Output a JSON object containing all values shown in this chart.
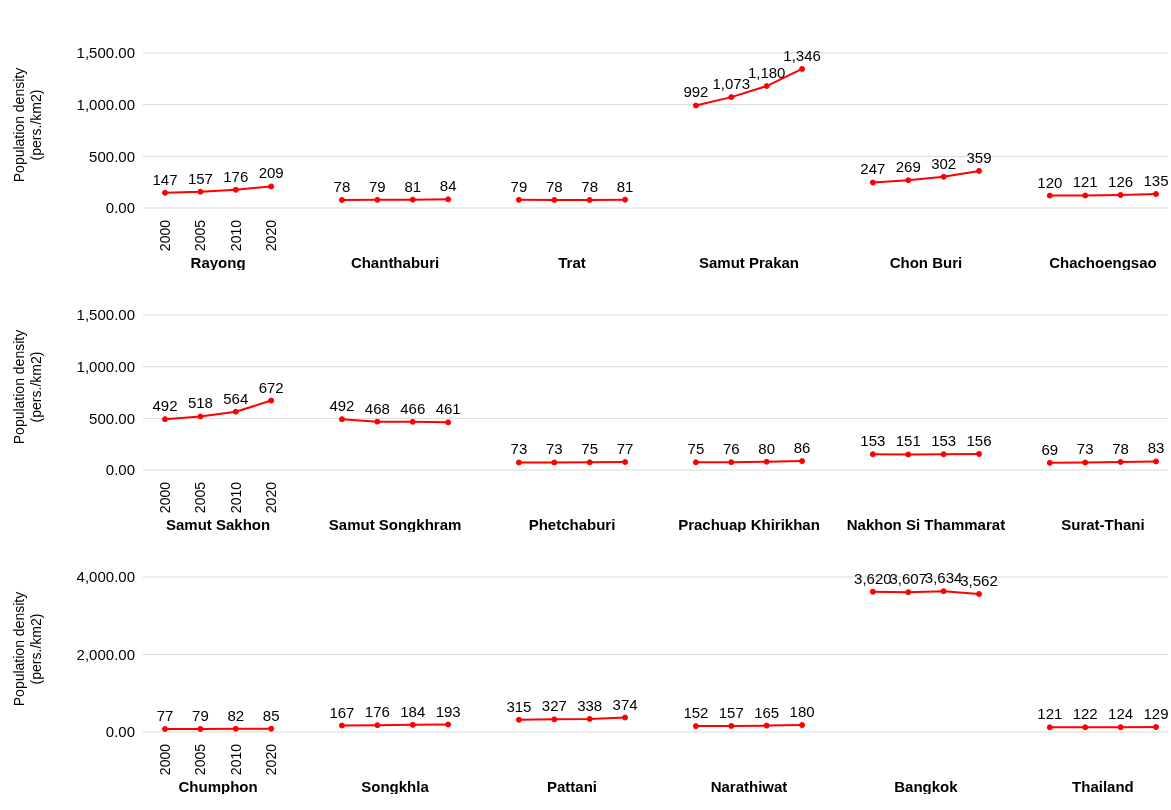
{
  "chart_data": [
    {
      "type": "line",
      "ylabel": "Population density (pers./km2)",
      "annotations": [
        "Rayong",
        "Chanthaburi",
        "Trat",
        "Samut Prakan",
        "Chon Buri",
        "Chachoengsao"
      ],
      "categories": [
        "2000",
        "2005",
        "2010",
        "2020",
        null,
        null,
        null,
        null,
        null,
        null,
        null,
        null,
        null,
        null,
        null,
        null,
        null,
        null,
        null,
        null,
        null,
        null,
        null,
        null,
        null,
        null,
        null,
        null,
        null
      ],
      "series": [
        {
          "color": "#ff0000",
          "values": [
            147,
            157,
            176,
            209,
            null,
            null,
            null,
            null,
            null,
            null,
            null,
            null,
            null,
            null,
            null,
            null,
            null,
            null,
            null,
            null,
            null,
            null,
            null,
            null,
            null,
            null,
            null,
            null,
            null
          ]
        },
        {
          "color": "#ff0000",
          "values": [
            null,
            null,
            null,
            null,
            null,
            78,
            79,
            81,
            84,
            null,
            null,
            null,
            null,
            null,
            null,
            null,
            null,
            null,
            null,
            null,
            null,
            null,
            null,
            null,
            null,
            null,
            null,
            null,
            null
          ]
        },
        {
          "color": "#ff0000",
          "values": [
            null,
            null,
            null,
            null,
            null,
            null,
            null,
            null,
            null,
            null,
            79,
            78,
            78,
            81,
            null,
            null,
            null,
            null,
            null,
            null,
            null,
            null,
            null,
            null,
            null,
            null,
            null,
            null,
            null
          ]
        },
        {
          "color": "#ff0000",
          "values": [
            null,
            null,
            null,
            null,
            null,
            null,
            null,
            null,
            null,
            null,
            null,
            null,
            null,
            null,
            null,
            992,
            1073,
            1180,
            1346,
            null,
            null,
            null,
            null,
            null,
            null,
            null,
            null,
            null,
            null
          ],
          "value_labels": [
            null,
            null,
            null,
            null,
            null,
            null,
            null,
            null,
            null,
            null,
            null,
            null,
            null,
            null,
            null,
            "992",
            "1,073",
            "1,180",
            "1,346",
            null,
            null,
            null,
            null,
            null,
            null,
            null,
            null,
            null,
            null
          ]
        },
        {
          "color": "#ff0000",
          "values": [
            null,
            null,
            null,
            null,
            null,
            null,
            null,
            null,
            null,
            null,
            null,
            null,
            null,
            null,
            null,
            null,
            null,
            null,
            null,
            null,
            247,
            269,
            302,
            359,
            null,
            null,
            null,
            null,
            null
          ]
        },
        {
          "color": "#ff0000",
          "values": [
            null,
            null,
            null,
            null,
            null,
            null,
            null,
            null,
            null,
            null,
            null,
            null,
            null,
            null,
            null,
            null,
            null,
            null,
            null,
            null,
            null,
            null,
            null,
            null,
            null,
            120,
            121,
            126,
            135
          ]
        }
      ],
      "ylim": [
        0,
        1500
      ],
      "yticks": [
        {
          "value": 0,
          "label": "0.00"
        },
        {
          "value": 500,
          "label": "500.00"
        },
        {
          "value": 1000,
          "label": "1,000.00"
        },
        {
          "value": 1500,
          "label": "1,500.00"
        }
      ],
      "grid": "y",
      "marker": "circle",
      "data_labels": true
    },
    {
      "type": "line",
      "ylabel": "Population density (pers./km2)",
      "annotations": [
        "Samut Sakhon",
        "Samut Songkhram",
        "Phetchaburi",
        "Prachuap Khirikhan",
        "Nakhon Si Thammarat",
        "Surat-Thani"
      ],
      "categories": [
        "2000",
        "2005",
        "2010",
        "2020",
        null,
        null,
        null,
        null,
        null,
        null,
        null,
        null,
        null,
        null,
        null,
        null,
        null,
        null,
        null,
        null,
        null,
        null,
        null,
        null,
        null,
        null,
        null,
        null,
        null
      ],
      "series": [
        {
          "color": "#ff0000",
          "values": [
            492,
            518,
            564,
            672,
            null,
            null,
            null,
            null,
            null,
            null,
            null,
            null,
            null,
            null,
            null,
            null,
            null,
            null,
            null,
            null,
            null,
            null,
            null,
            null,
            null,
            null,
            null,
            null,
            null
          ]
        },
        {
          "color": "#ff0000",
          "values": [
            null,
            null,
            null,
            null,
            null,
            492,
            468,
            466,
            461,
            null,
            null,
            null,
            null,
            null,
            null,
            null,
            null,
            null,
            null,
            null,
            null,
            null,
            null,
            null,
            null,
            null,
            null,
            null,
            null
          ]
        },
        {
          "color": "#ff0000",
          "values": [
            null,
            null,
            null,
            null,
            null,
            null,
            null,
            null,
            null,
            null,
            73,
            73,
            75,
            77,
            null,
            null,
            null,
            null,
            null,
            null,
            null,
            null,
            null,
            null,
            null,
            null,
            null,
            null,
            null
          ]
        },
        {
          "color": "#ff0000",
          "values": [
            null,
            null,
            null,
            null,
            null,
            null,
            null,
            null,
            null,
            null,
            null,
            null,
            null,
            null,
            null,
            75,
            76,
            80,
            86,
            null,
            null,
            null,
            null,
            null,
            null,
            null,
            null,
            null,
            null
          ]
        },
        {
          "color": "#ff0000",
          "values": [
            null,
            null,
            null,
            null,
            null,
            null,
            null,
            null,
            null,
            null,
            null,
            null,
            null,
            null,
            null,
            null,
            null,
            null,
            null,
            null,
            153,
            151,
            153,
            156,
            null,
            null,
            null,
            null,
            null
          ]
        },
        {
          "color": "#ff0000",
          "values": [
            null,
            null,
            null,
            null,
            null,
            null,
            null,
            null,
            null,
            null,
            null,
            null,
            null,
            null,
            null,
            null,
            null,
            null,
            null,
            null,
            null,
            null,
            null,
            null,
            null,
            69,
            73,
            78,
            83
          ]
        }
      ],
      "ylim": [
        0,
        1500
      ],
      "yticks": [
        {
          "value": 0,
          "label": "0.00"
        },
        {
          "value": 500,
          "label": "500.00"
        },
        {
          "value": 1000,
          "label": "1,000.00"
        },
        {
          "value": 1500,
          "label": "1,500.00"
        }
      ],
      "grid": "y",
      "marker": "circle",
      "data_labels": true
    },
    {
      "type": "line",
      "ylabel": "Population density (pers./km2)",
      "annotations": [
        "Chumphon",
        "Songkhla",
        "Pattani",
        "Narathiwat",
        "Bangkok",
        "Thailand"
      ],
      "categories": [
        "2000",
        "2005",
        "2010",
        "2020",
        null,
        null,
        null,
        null,
        null,
        null,
        null,
        null,
        null,
        null,
        null,
        null,
        null,
        null,
        null,
        null,
        null,
        null,
        null,
        null,
        null,
        null,
        null,
        null,
        null
      ],
      "series": [
        {
          "color": "#ff0000",
          "values": [
            77,
            79,
            82,
            85,
            null,
            null,
            null,
            null,
            null,
            null,
            null,
            null,
            null,
            null,
            null,
            null,
            null,
            null,
            null,
            null,
            null,
            null,
            null,
            null,
            null,
            null,
            null,
            null,
            null
          ]
        },
        {
          "color": "#ff0000",
          "values": [
            null,
            null,
            null,
            null,
            null,
            167,
            176,
            184,
            193,
            null,
            null,
            null,
            null,
            null,
            null,
            null,
            null,
            null,
            null,
            null,
            null,
            null,
            null,
            null,
            null,
            null,
            null,
            null,
            null
          ]
        },
        {
          "color": "#ff0000",
          "values": [
            null,
            null,
            null,
            null,
            null,
            null,
            null,
            null,
            null,
            null,
            315,
            327,
            338,
            374,
            null,
            null,
            null,
            null,
            null,
            null,
            null,
            null,
            null,
            null,
            null,
            null,
            null,
            null,
            null
          ]
        },
        {
          "color": "#ff0000",
          "values": [
            null,
            null,
            null,
            null,
            null,
            null,
            null,
            null,
            null,
            null,
            null,
            null,
            null,
            null,
            null,
            152,
            157,
            165,
            180,
            null,
            null,
            null,
            null,
            null,
            null,
            null,
            null,
            null,
            null
          ]
        },
        {
          "color": "#ff0000",
          "values": [
            null,
            null,
            null,
            null,
            null,
            null,
            null,
            null,
            null,
            null,
            null,
            null,
            null,
            null,
            null,
            null,
            null,
            null,
            null,
            null,
            3620,
            3607,
            3634,
            3562,
            null,
            null,
            null,
            null,
            null
          ],
          "value_labels": [
            null,
            null,
            null,
            null,
            null,
            null,
            null,
            null,
            null,
            null,
            null,
            null,
            null,
            null,
            null,
            null,
            null,
            null,
            null,
            null,
            "3,620",
            "3,607",
            "3,634",
            "3,562",
            null,
            null,
            null,
            null,
            null
          ]
        },
        {
          "color": "#ff0000",
          "values": [
            null,
            null,
            null,
            null,
            null,
            null,
            null,
            null,
            null,
            null,
            null,
            null,
            null,
            null,
            null,
            null,
            null,
            null,
            null,
            null,
            null,
            null,
            null,
            null,
            null,
            121,
            122,
            124,
            129
          ]
        }
      ],
      "ylim": [
        0,
        4000
      ],
      "yticks": [
        {
          "value": 0,
          "label": "0.00"
        },
        {
          "value": 2000,
          "label": "2,000.00"
        },
        {
          "value": 4000,
          "label": "4,000.00"
        }
      ],
      "grid": "y",
      "marker": "circle",
      "data_labels": true
    }
  ]
}
